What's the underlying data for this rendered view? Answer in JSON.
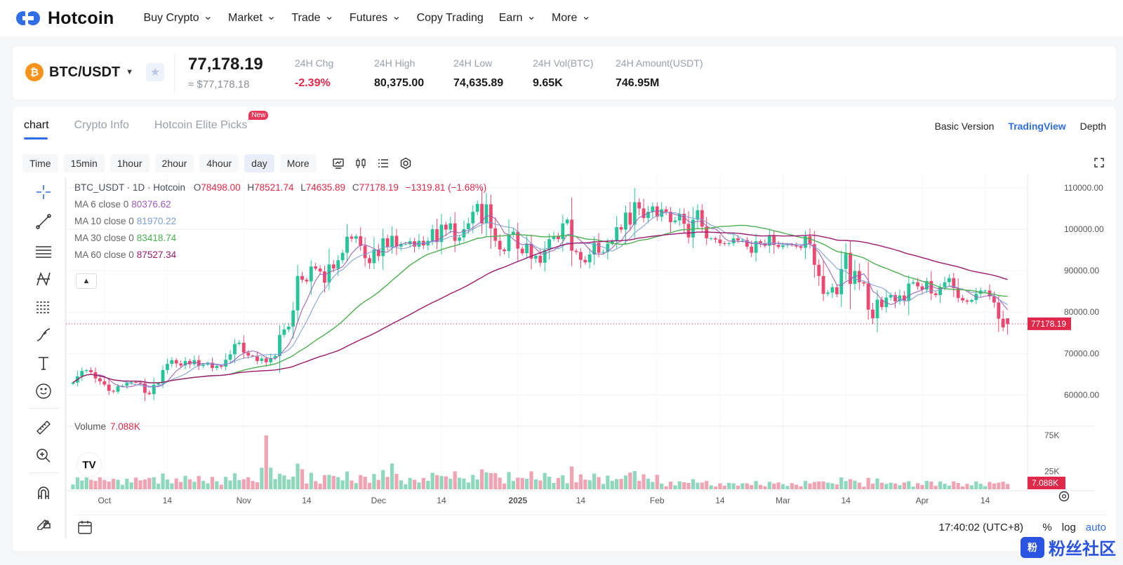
{
  "brand": {
    "name": "Hotcoin"
  },
  "nav": [
    {
      "label": "Buy Crypto",
      "dropdown": true
    },
    {
      "label": "Market",
      "dropdown": true
    },
    {
      "label": "Trade",
      "dropdown": true
    },
    {
      "label": "Futures",
      "dropdown": true
    },
    {
      "label": "Copy Trading",
      "dropdown": false
    },
    {
      "label": "Earn",
      "dropdown": true
    },
    {
      "label": "More",
      "dropdown": true
    }
  ],
  "ticker": {
    "pair": "BTC/USDT",
    "coin_symbol": "₿",
    "last_price": "77,178.19",
    "usd_price": "≈ $77,178.18",
    "stats": [
      {
        "label": "24H Chg",
        "value": "-2.39%",
        "negative": true
      },
      {
        "label": "24H High",
        "value": "80,375.00",
        "negative": false
      },
      {
        "label": "24H Low",
        "value": "74,635.89",
        "negative": false
      },
      {
        "label": "24H Vol(BTC)",
        "value": "9.65K",
        "negative": false
      },
      {
        "label": "24H Amount(USDT)",
        "value": "746.95M",
        "negative": false
      }
    ]
  },
  "tabs": [
    {
      "label": "chart",
      "active": true
    },
    {
      "label": "Crypto Info",
      "active": false
    },
    {
      "label": "Hotcoin Elite Picks",
      "active": false,
      "badge": "New"
    }
  ],
  "views": [
    {
      "label": "Basic Version",
      "active": false
    },
    {
      "label": "TradingView",
      "active": true
    },
    {
      "label": "Depth",
      "active": false
    }
  ],
  "intervals": [
    {
      "label": "Time",
      "active": false
    },
    {
      "label": "15min",
      "active": false
    },
    {
      "label": "1hour",
      "active": false
    },
    {
      "label": "2hour",
      "active": false
    },
    {
      "label": "4hour",
      "active": false
    },
    {
      "label": "day",
      "active": true
    },
    {
      "label": "More",
      "active": false
    }
  ],
  "toolbar_icons": [
    "indicators-icon",
    "candle-type-icon",
    "list-icon",
    "settings-icon"
  ],
  "drawing_tools": [
    "crosshair-icon",
    "trend-line-icon",
    "horizontal-lines-icon",
    "pattern-icon",
    "fib-icon",
    "brush-icon",
    "text-icon",
    "emoji-icon",
    "ruler-icon",
    "zoom-in-icon",
    "magnet-icon",
    "lock-draw-icon"
  ],
  "legend": {
    "symbol": "BTC_USDT · 1D · Hotcoin",
    "open_label": "O",
    "open": "78498.00",
    "high_label": "H",
    "high": "78521.74",
    "low_label": "L",
    "low": "74635.89",
    "close_label": "C",
    "close": "77178.19",
    "change": "−1319.81 (−1.68%)",
    "ma": [
      {
        "label": "MA 6 close 0",
        "value": "80376.62",
        "color": "#9b59b6"
      },
      {
        "label": "MA 10 close 0",
        "value": "81970.22",
        "color": "#7b9cd6"
      },
      {
        "label": "MA 30 close 0",
        "value": "83418.74",
        "color": "#4caf50"
      },
      {
        "label": "MA 60 close 0",
        "value": "87527.34",
        "color": "#9c1a6e"
      }
    ],
    "volume_label": "Volume",
    "volume_value": "7.088K"
  },
  "price_axis": {
    "ticks": [
      "110000.00",
      "100000.00",
      "90000.00",
      "80000.00",
      "70000.00",
      "60000.00"
    ],
    "current": "77178.19"
  },
  "volume_axis": {
    "ticks": [
      "75K",
      "25K"
    ],
    "current": "7.088K"
  },
  "time_axis": [
    "Oct",
    "14",
    "Nov",
    "14",
    "Dec",
    "14",
    "2025",
    "14",
    "Feb",
    "14",
    "Mar",
    "14",
    "Apr",
    "14"
  ],
  "footer": {
    "time": "17:40:02 (UTC+8)",
    "percent": "%",
    "log": "log",
    "auto": "auto"
  },
  "watermark": {
    "box": "粉",
    "text": "粉丝社区"
  },
  "colors": {
    "up": "#26c499",
    "down": "#ef476f",
    "accent": "#2f6ee7",
    "ma6": "#9b59b6",
    "ma10": "#7b9cd6",
    "ma30": "#4caf50",
    "ma60": "#9c1a6e"
  },
  "chart_data": {
    "type": "candlestick",
    "timeframe": "1D",
    "date_range": [
      "2024-09-24",
      "2025-04-07"
    ],
    "ylim": [
      55000,
      112000
    ],
    "closes": [
      63000,
      64500,
      65800,
      66000,
      65500,
      64000,
      63300,
      62500,
      61000,
      60800,
      62100,
      62200,
      62900,
      63100,
      63000,
      62800,
      60500,
      60200,
      62500,
      62800,
      66000,
      67500,
      68400,
      67600,
      67100,
      68200,
      67400,
      68400,
      67000,
      67300,
      67800,
      66500,
      67000,
      66800,
      68500,
      69800,
      72300,
      72600,
      70200,
      69500,
      69300,
      68200,
      68800,
      67900,
      68900,
      69400,
      74500,
      75800,
      76500,
      80400,
      88700,
      87800,
      87400,
      91000,
      90500,
      89800,
      87100,
      91500,
      90500,
      92500,
      94300,
      98200,
      97700,
      98300,
      96000,
      93000,
      91800,
      95100,
      93500,
      97800,
      95700,
      98400,
      95800,
      96400,
      96400,
      97100,
      95800,
      97200,
      96100,
      97200,
      100000,
      96900,
      101100,
      99900,
      101400,
      97200,
      98000,
      100000,
      101400,
      104200,
      106100,
      101400,
      106000,
      100200,
      97200,
      95100,
      94700,
      98700,
      99400,
      95300,
      94200,
      96500,
      92900,
      93600,
      91900,
      95000,
      97600,
      98300,
      97600,
      101400,
      102300,
      94800,
      94500,
      92600,
      92000,
      93900,
      96700,
      94300,
      94500,
      96500,
      97200,
      100500,
      99900,
      104000,
      101100,
      106500,
      105000,
      102700,
      104200,
      105500,
      103000,
      104800,
      104200,
      101700,
      102100,
      103700,
      101300,
      98000,
      102300,
      104600,
      100600,
      97800,
      97800,
      97500,
      96600,
      96500,
      96600,
      97800,
      97300,
      97400,
      95800,
      94300,
      97100,
      96600,
      96000,
      98400,
      96200,
      95700,
      96100,
      96300,
      96100,
      95800,
      95500,
      98300,
      96400,
      91400,
      88700,
      84400,
      84700,
      86000,
      84300,
      90400,
      94300,
      86800,
      89900,
      87200,
      86900,
      80600,
      78500,
      83000,
      81200,
      83500,
      84100,
      82600,
      84000,
      82700,
      86900,
      87200,
      86200,
      85400,
      87500,
      84500,
      84100,
      86000,
      87200,
      88200,
      85800,
      83400,
      82800,
      82500,
      82900,
      84400,
      85200,
      85200,
      83800,
      82300,
      78400,
      76300,
      77100
    ],
    "volume": "per-day bars; highest spike ~75K on 2024-11-06"
  }
}
